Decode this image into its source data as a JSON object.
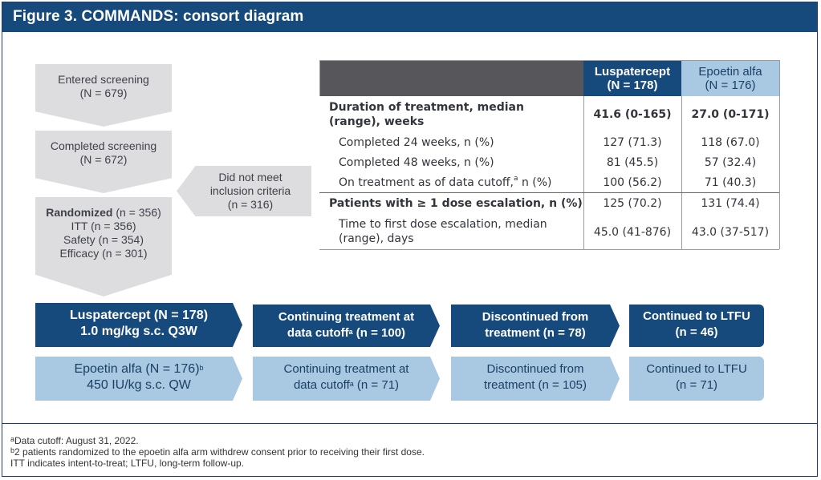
{
  "header": {
    "title": "Figure 3. COMMANDS: consort diagram"
  },
  "flow": {
    "screening": {
      "label": "Entered screening",
      "count": "(N = 679)"
    },
    "completed": {
      "label": "Completed screening",
      "count": "(N = 672)"
    },
    "randomized": {
      "label": "Randomized",
      "count": "(n = 356)",
      "itt": "ITT (n = 356)",
      "safety": "Safety (n = 354)",
      "efficacy": "Efficacy (n = 301)"
    },
    "excluded": {
      "line1": "Did not meet",
      "line2": "inclusion criteria",
      "line3": "(n = 316)"
    }
  },
  "table": {
    "col1": {
      "line1": "Luspatercept",
      "line2": "(N = 178)"
    },
    "col2": {
      "line1": "Epoetin alfa",
      "line2": "(N = 176)"
    },
    "rows": [
      {
        "label1": "Duration of treatment, median",
        "label2": "(range), weeks",
        "v1": "41.6 (0-165)",
        "v2": "27.0 (0-171)"
      },
      {
        "label": "Completed 24 weeks, n (%)",
        "v1": "127 (71.3)",
        "v2": "118 (67.0)"
      },
      {
        "label": "Completed 48 weeks, n (%)",
        "v1": "81 (45.5)",
        "v2": "57 (32.4)"
      },
      {
        "label_pre": "On treatment as of data cutoff,",
        "label_sup": "a",
        "label_post": " n (%)",
        "v1": "100 (56.2)",
        "v2": "71 (40.3)"
      },
      {
        "label": "Patients with ≥ 1 dose escalation, n (%)",
        "v1": "125 (70.2)",
        "v2": "131 (74.4)"
      },
      {
        "label1": "Time to first dose escalation, median",
        "label2": "(range), days",
        "v1": "45.0 (41-876)",
        "v2": "43.0 (37-517)"
      }
    ]
  },
  "arms": {
    "lusp": {
      "arm_line1": "Luspatercept (N = 178)",
      "arm_line2": "1.0 mg/kg s.c. Q3W",
      "cont_line1": "Continuing treatment at",
      "cont_line2_pre": "data cutoff",
      "cont_sup": "a",
      "cont_line2_post": " (n = 100)",
      "disc_line1": "Discontinued from",
      "disc_line2": "treatment (n = 78)",
      "ltfu_line1": "Continued to LTFU",
      "ltfu_line2": "(n = 46)"
    },
    "epo": {
      "arm_line1": "Epoetin alfa (N = 176)",
      "arm_sup": "b",
      "arm_line2": "450 IU/kg s.c. QW",
      "cont_line1": "Continuing treatment at",
      "cont_line2_pre": "data cutoff",
      "cont_sup": "a",
      "cont_line2_post": " (n = 71)",
      "disc_line1": "Discontinued from",
      "disc_line2": "treatment (n = 105)",
      "ltfu_line1": "Continued to LTFU",
      "ltfu_line2": "(n = 71)"
    }
  },
  "footnotes": {
    "a_sup": "a",
    "a_text": "Data cutoff: August 31, 2022.",
    "b_sup": "b",
    "b_text": "2 patients randomized to the epoetin alfa arm withdrew consent prior to receiving their first dose.",
    "abbrev": "ITT indicates intent-to-treat; LTFU, long-term follow-up."
  }
}
